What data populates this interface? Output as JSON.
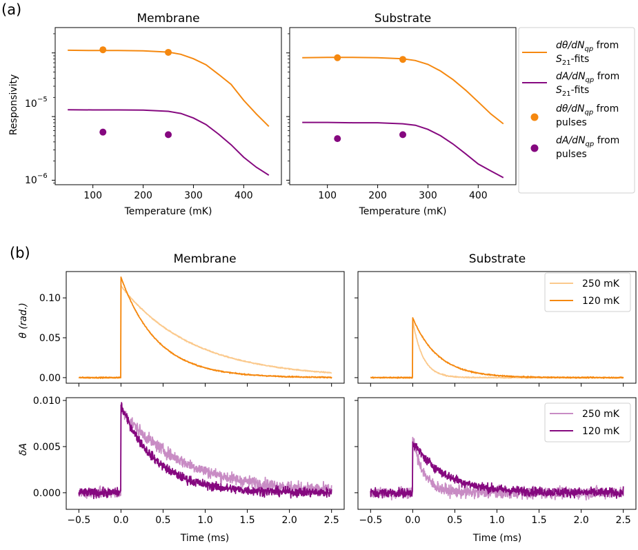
{
  "colors": {
    "orange": "#f5880f",
    "orange_light": "#fbc98c",
    "purple": "#85087f",
    "purple_light": "#c88cc4"
  },
  "panel_a": {
    "label": "(a)",
    "ylabel": "Responsivity",
    "xlabel": "Temperature (mK)",
    "ytick_labels": [
      "10",
      "10"
    ],
    "ytick_exponents": [
      "−5",
      "−6"
    ],
    "legend": [
      {
        "line1": "dθ/dN",
        "sub1": "qp",
        "after1": " from",
        "line2": "S",
        "sub2": "21",
        "after2": "-fits",
        "marker": "line",
        "color": "#f5880f"
      },
      {
        "line1": "dA/dN",
        "sub1": "qp",
        "after1": " from",
        "line2": "S",
        "sub2": "21",
        "after2": "-fits",
        "marker": "line",
        "color": "#85087f"
      },
      {
        "line1": "dθ/dN",
        "sub1": "qp",
        "after1": " from",
        "line2": " pulses",
        "sub2": "",
        "after2": "",
        "marker": "dot",
        "color": "#f5880f"
      },
      {
        "line1": "dA/dN",
        "sub1": "qp",
        "after1": " from",
        "line2": " pulses",
        "sub2": "",
        "after2": "",
        "marker": "dot",
        "color": "#85087f"
      }
    ]
  },
  "panel_b": {
    "label": "(b)",
    "xlabel": "Time (ms)",
    "ylabel_theta": "θ (rad.)",
    "ylabel_dA": "δA",
    "legend_theta": [
      "250 mK",
      "120 mK"
    ],
    "legend_dA": [
      "250 mK",
      "120 mK"
    ]
  },
  "chart_data": [
    {
      "type": "line",
      "title": "Membrane",
      "xlabel": "Temperature (mK)",
      "ylabel": "Responsivity",
      "yscale": "log",
      "xlim": [
        25,
        475
      ],
      "ylim": [
        8.5e-07,
        0.00025
      ],
      "xticks": [
        100,
        200,
        300,
        400
      ],
      "xtick_labels": [
        "100",
        "200",
        "300",
        "400"
      ],
      "series": [
        {
          "name": "dθ/dN_qp from S21-fits",
          "kind": "line",
          "color": "#f5880f",
          "x": [
            50,
            100,
            150,
            200,
            250,
            275,
            300,
            325,
            350,
            375,
            400,
            425,
            450
          ],
          "y": [
            0.00011,
            0.000109,
            0.000109,
            0.000108,
            0.000103,
            9.5e-05,
            8.1e-05,
            6.5e-05,
            4.6e-05,
            3.2e-05,
            1.8e-05,
            1.1e-05,
            7e-06
          ]
        },
        {
          "name": "dA/dN_qp from S21-fits",
          "kind": "line",
          "color": "#85087f",
          "x": [
            50,
            100,
            150,
            200,
            250,
            275,
            300,
            325,
            350,
            375,
            400,
            425,
            450
          ],
          "y": [
            1.28e-05,
            1.27e-05,
            1.27e-05,
            1.26e-05,
            1.21e-05,
            1.12e-05,
            9.5e-06,
            7.5e-06,
            5.3e-06,
            3.6e-06,
            2.3e-06,
            1.6e-06,
            1.2e-06
          ]
        },
        {
          "name": "dθ/dN_qp from pulses",
          "kind": "scatter",
          "color": "#f5880f",
          "x": [
            120,
            250
          ],
          "y": [
            0.000112,
            0.000102
          ]
        },
        {
          "name": "dA/dN_qp from pulses",
          "kind": "scatter",
          "color": "#85087f",
          "x": [
            120,
            250
          ],
          "y": [
            5.7e-06,
            5.2e-06
          ]
        }
      ]
    },
    {
      "type": "line",
      "title": "Substrate",
      "xlabel": "Temperature (mK)",
      "ylabel": "",
      "yscale": "log",
      "xlim": [
        25,
        475
      ],
      "ylim": [
        8.5e-07,
        0.00025
      ],
      "xticks": [
        100,
        200,
        300,
        400
      ],
      "xtick_labels": [
        "100",
        "200",
        "300",
        "400"
      ],
      "series": [
        {
          "name": "dθ/dN_qp from S21-fits",
          "kind": "line",
          "color": "#f5880f",
          "x": [
            50,
            100,
            150,
            200,
            250,
            275,
            300,
            325,
            350,
            375,
            400,
            425,
            450
          ],
          "y": [
            8.4e-05,
            8.5e-05,
            8.5e-05,
            8.4e-05,
            8.1e-05,
            7.6e-05,
            6.6e-05,
            5.2e-05,
            3.8e-05,
            2.6e-05,
            1.7e-05,
            1.1e-05,
            7.7e-06
          ]
        },
        {
          "name": "dA/dN_qp from S21-fits",
          "kind": "line",
          "color": "#85087f",
          "x": [
            50,
            100,
            150,
            200,
            250,
            275,
            300,
            325,
            350,
            375,
            400,
            425,
            450
          ],
          "y": [
            8.1e-06,
            8.1e-06,
            8e-06,
            8e-06,
            7.7e-06,
            7.3e-06,
            6.3e-06,
            5e-06,
            3.7e-06,
            2.6e-06,
            1.8e-06,
            1.4e-06,
            1.1e-06
          ]
        },
        {
          "name": "dθ/dN_qp from pulses",
          "kind": "scatter",
          "color": "#f5880f",
          "x": [
            120,
            250
          ],
          "y": [
            8.4e-05,
            7.9e-05
          ]
        },
        {
          "name": "dA/dN_qp from pulses",
          "kind": "scatter",
          "color": "#85087f",
          "x": [
            120,
            250
          ],
          "y": [
            4.5e-06,
            5.2e-06
          ]
        }
      ]
    },
    {
      "type": "line",
      "title": "Membrane",
      "xlabel": "",
      "ylabel": "θ (rad.)",
      "xlim": [
        -0.65,
        2.65
      ],
      "ylim": [
        -0.007,
        0.133
      ],
      "xticks": [
        -0.5,
        0.0,
        0.5,
        1.0,
        1.5,
        2.0,
        2.5
      ],
      "yticks": [
        0.0,
        0.05,
        0.1
      ],
      "ytick_labels": [
        "0.00",
        "0.05",
        "0.10"
      ],
      "series": [
        {
          "name": "250 mK",
          "color": "#fbc98c",
          "noise": 0.0005,
          "baseline_end": 0.0,
          "peak": 0.115,
          "tau": 0.85,
          "tail_floor": 0.0
        },
        {
          "name": "120 mK",
          "color": "#f5880f",
          "noise": 0.0005,
          "baseline_end": 0.0,
          "peak": 0.126,
          "tau": 0.43,
          "tail_floor": 0.0
        }
      ]
    },
    {
      "type": "line",
      "title": "Substrate",
      "xlabel": "",
      "ylabel": "",
      "xlim": [
        -0.65,
        2.65
      ],
      "ylim": [
        -0.007,
        0.133
      ],
      "xticks": [
        -0.5,
        0.0,
        0.5,
        1.0,
        1.5,
        2.0,
        2.5
      ],
      "yticks": [
        0.0,
        0.05,
        0.1
      ],
      "series": [
        {
          "name": "250 mK",
          "color": "#fbc98c",
          "noise": 0.0005,
          "baseline_end": 0.0,
          "peak": 0.072,
          "tau": 0.12,
          "tail_floor": 0.0
        },
        {
          "name": "120 mK",
          "color": "#f5880f",
          "noise": 0.0005,
          "baseline_end": 0.0,
          "peak": 0.075,
          "tau": 0.3,
          "tail_floor": 0.0
        }
      ]
    },
    {
      "type": "line",
      "title": "",
      "xlabel": "Time (ms)",
      "ylabel": "δA",
      "xlim": [
        -0.65,
        2.65
      ],
      "ylim": [
        -0.0018,
        0.0103
      ],
      "xticks": [
        -0.5,
        0.0,
        0.5,
        1.0,
        1.5,
        2.0,
        2.5
      ],
      "xtick_labels": [
        "−0.5",
        "0.0",
        "0.5",
        "1.0",
        "1.5",
        "2.0",
        "2.5"
      ],
      "yticks": [
        0.0,
        0.005,
        0.01
      ],
      "ytick_labels": [
        "0.000",
        "0.005",
        "0.010"
      ],
      "series": [
        {
          "name": "250 mK",
          "color": "#c88cc4",
          "noise": 0.00045,
          "peak": 0.009,
          "tau": 0.75
        },
        {
          "name": "120 mK",
          "color": "#85087f",
          "noise": 0.00035,
          "peak": 0.0095,
          "tau": 0.42
        }
      ]
    },
    {
      "type": "line",
      "title": "",
      "xlabel": "Time (ms)",
      "ylabel": "",
      "xlim": [
        -0.65,
        2.65
      ],
      "ylim": [
        -0.0018,
        0.0103
      ],
      "xticks": [
        -0.5,
        0.0,
        0.5,
        1.0,
        1.5,
        2.0,
        2.5
      ],
      "xtick_labels": [
        "−0.5",
        "0.0",
        "0.5",
        "1.0",
        "1.5",
        "2.0",
        "2.5"
      ],
      "yticks": [
        0.0,
        0.005,
        0.01
      ],
      "series": [
        {
          "name": "250 mK",
          "color": "#c88cc4",
          "noise": 0.00045,
          "peak": 0.006,
          "tau": 0.13
        },
        {
          "name": "120 mK",
          "color": "#85087f",
          "noise": 0.00035,
          "peak": 0.0055,
          "tau": 0.38
        }
      ]
    }
  ]
}
